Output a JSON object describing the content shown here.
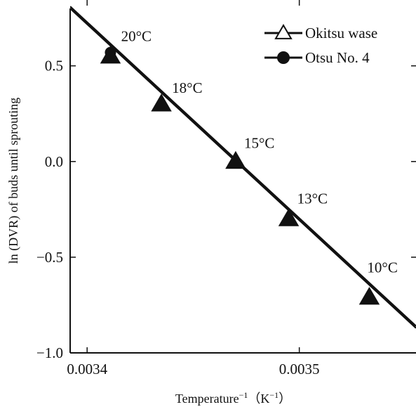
{
  "chart_data": {
    "type": "line",
    "title": "",
    "xlabel": "Temperature",
    "xlabel_exp": "−1",
    "xlabel_unit_open": "（K",
    "xlabel_unit_exp": "−1",
    "xlabel_unit_close": "）",
    "ylabel": "ln (DVR) of buds until sprouting",
    "xlim": [
      0.003392,
      0.003555
    ],
    "ylim": [
      -1.0,
      0.8
    ],
    "x_ticks": [
      0.0034,
      0.0035
    ],
    "x_tick_labels": [
      "0.0034",
      "0.0035"
    ],
    "y_ticks": [
      -1.0,
      -0.5,
      0.0,
      0.5
    ],
    "y_tick_labels": [
      "−1.0",
      "−0.5",
      "0.0",
      "0.5"
    ],
    "grid": false,
    "legend_position": "top-right",
    "series": [
      {
        "name": "Okitsu wase",
        "marker": "triangle",
        "color": "#111111",
        "x": [
          0.003411,
          0.003435,
          0.00347,
          0.003495,
          0.003533
        ],
        "y": [
          0.55,
          0.3,
          0.0,
          -0.3,
          -0.71
        ],
        "fit_line": {
          "x": [
            0.003392,
            0.003555
          ],
          "y": [
            0.8,
            -0.87
          ]
        }
      },
      {
        "name": "Otsu No. 4",
        "marker": "circle",
        "color": "#111111",
        "x": [
          0.003411
        ],
        "y": [
          0.57
        ],
        "fit_line": {
          "x": [
            0.003392,
            0.003555
          ],
          "y": [
            0.81,
            -0.86
          ]
        }
      }
    ],
    "annotations": [
      {
        "text": "20°C",
        "x": 0.003416,
        "y": 0.63
      },
      {
        "text": "18°C",
        "x": 0.00344,
        "y": 0.36
      },
      {
        "text": "15°C",
        "x": 0.003474,
        "y": 0.07
      },
      {
        "text": "13°C",
        "x": 0.003499,
        "y": -0.22
      },
      {
        "text": "10°C",
        "x": 0.003532,
        "y": -0.58
      }
    ]
  }
}
